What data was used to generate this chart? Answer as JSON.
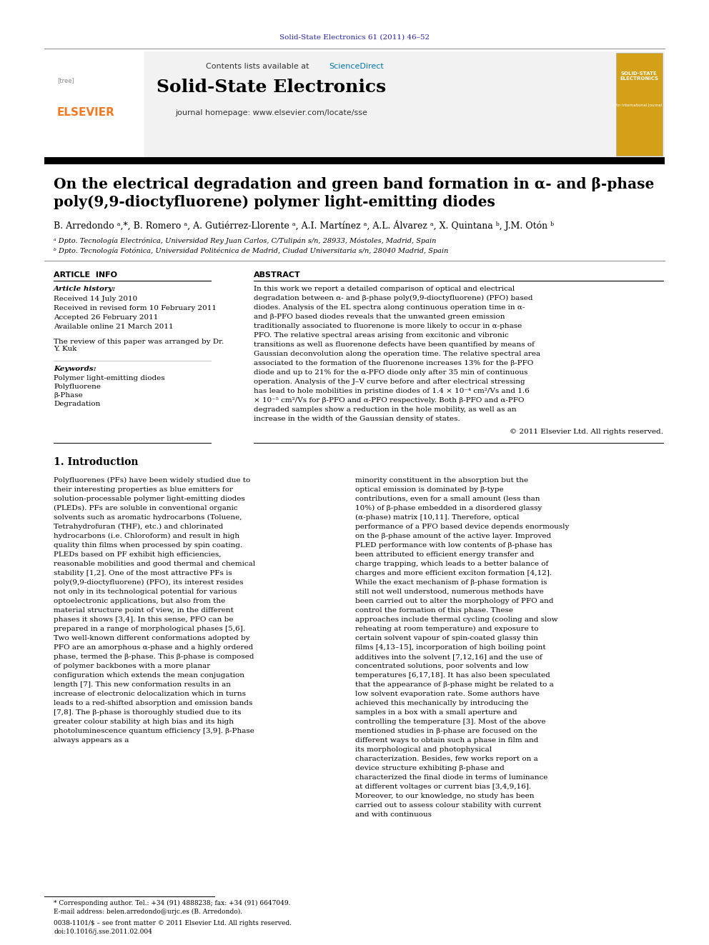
{
  "journal_ref": "Solid-State Electronics 61 (2011) 46–52",
  "contents_text": "Contents lists available at",
  "sciencedirect_text": "ScienceDirect",
  "journal_name": "Solid-State Electronics",
  "journal_homepage": "journal homepage: www.elsevier.com/locate/sse",
  "paper_title_line1": "On the electrical degradation and green band formation in α- and β-phase",
  "paper_title_line2": "poly(9,9-dioctyfluorene) polymer light-emitting diodes",
  "authors": "B. Arredondo ᵃ,*, B. Romero ᵃ, A. Gutiérrez-Llorente ᵃ, A.I. Martínez ᵃ, A.L. Álvarez ᵃ, X. Quintana ᵇ, J.M. Otón ᵇ",
  "affil_a": "ᵃ Dpto. Tecnología Electrónica, Universidad Rey Juan Carlos, C/Tulipán s/n, 28933, Móstoles, Madrid, Spain",
  "affil_b": "ᵇ Dpto. Tecnología Fotónica, Universidad Politécnica de Madrid, Ciudad Universitaria s/n, 28040 Madrid, Spain",
  "article_info_header": "ARTICLE  INFO",
  "abstract_header": "ABSTRACT",
  "article_history_label": "Article history:",
  "received_1": "Received 14 July 2010",
  "received_revised": "Received in revised form 10 February 2011",
  "accepted": "Accepted 26 February 2011",
  "available": "Available online 21 March 2011",
  "review_note": "The review of this paper was arranged by Dr.\nY. Kuk",
  "keywords_label": "Keywords:",
  "keyword1": "Polymer light-emitting diodes",
  "keyword2": "Polyfluorene",
  "keyword3": "β-Phase",
  "keyword4": "Degradation",
  "abstract_text": "In this work we report a detailed comparison of optical and electrical degradation between α- and β-phase poly(9,9-dioctyfluorene) (PFO) based diodes. Analysis of the EL spectra along continuous operation time in α- and β-PFO based diodes reveals that the unwanted green emission traditionally associated to fluorenone is more likely to occur in α-phase PFO. The relative spectral areas arising from excitonic and vibronic transitions as well as fluorenone defects have been quantified by means of Gaussian deconvolution along the operation time. The relative spectral area associated to the formation of the fluorenone increases 13% for the β-PFO diode and up to 21% for the α-PFO diode only after 35 min of continuous operation. Analysis of the J–V curve before and after electrical stressing has lead to hole mobilities in pristine diodes of 1.4 × 10⁻⁴ cm²/Vs and 1.6 × 10⁻⁵ cm²/Vs for β-PFO and α-PFO respectively. Both β-PFO and α-PFO degraded samples show a reduction in the hole mobility, as well as an increase in the width of the Gaussian density of states.",
  "copyright": "© 2011 Elsevier Ltd. All rights reserved.",
  "intro_header": "1. Introduction",
  "intro_col1": "Polyfluorenes (PFs) have been widely studied due to their interesting properties as blue emitters for solution-processable polymer light-emitting diodes (PLEDs). PFs are soluble in conventional organic solvents such as aromatic hydrocarbons (Toluene, Tetrahydrofuran (THF), etc.) and chlorinated hydrocarbons (i.e. Chloroform) and result in high quality thin films when processed by spin coating. PLEDs based on PF exhibit high efficiencies, reasonable mobilities and good thermal and chemical stability [1,2]. One of the most attractive PFs is poly(9,9-dioctyfluorene) (PFO), its interest resides not only in its technological potential for various optoelectronic applications, but also from the material structure point of view, in the different phases it shows [3,4]. In this sense, PFO can be prepared in a range of morphological phases [5,6]. Two well-known different conformations adopted by PFO are an amorphous α-phase and a highly ordered phase, termed the β-phase. This β-phase is composed of polymer backbones with a more planar configuration which extends the mean conjugation length [7]. This new conformation results in an increase of electronic delocalization which in turns leads to a red-shifted absorption and emission bands [7,8]. The β-phase is thoroughly studied due to its greater colour stability at high bias and its high photoluminescence quantum efficiency [3,9]. β-Phase always appears as a",
  "intro_col2": "minority constituent in the absorption but the optical emission is dominated by β-type contributions, even for a small amount (less than 10%) of β-phase embedded in a disordered glassy (α-phase) matrix [10,11]. Therefore, optical performance of a PFO based device depends enormously on the β-phase amount of the active layer. Improved PLED performance with low contents of β-phase has been attributed to efficient energy transfer and charge trapping, which leads to a better balance of charges and more efficient exciton formation [4,12]. While the exact mechanism of β-phase formation is still not well understood, numerous methods have been carried out to alter the morphology of PFO and control the formation of this phase. These approaches include thermal cycling (cooling and slow reheating at room temperature) and exposure to certain solvent vapour of spin-coated glassy thin films [4,13–15], incorporation of high boiling point additives into the solvent [7,12,16] and the use of concentrated solutions, poor solvents and low temperatures [6,17,18]. It has also been speculated that the appearance of β-phase might be related to a low solvent evaporation rate. Some authors have achieved this mechanically by introducing the samples in a box with a small aperture and controlling the temperature [3]. Most of the above mentioned studies in β-phase are focused on the different ways to obtain such a phase in film and its morphological and photophysical characterization. Besides, few works report on a device structure exhibiting β-phase and characterized the final diode in terms of luminance at different voltages or current bias [3,4,9,16]. Moreover, to our knowledge, no study has been carried out to assess colour stability with current and with continuous",
  "footnote1": "* Corresponding author. Tel.: +34 (91) 4888238; fax: +34 (91) 6647049.",
  "footnote2": "E-mail address: belen.arredondo@urjc.es (B. Arredondo).",
  "footnote3": "0038-1101/$ – see front matter © 2011 Elsevier Ltd. All rights reserved.",
  "footnote4": "doi:10.1016/j.sse.2011.02.004",
  "bg_header": "#f0f0f0",
  "color_journal_ref": "#2222aa",
  "color_black": "#000000",
  "color_elsevier_orange": "#f47920",
  "color_dark_blue": "#003087",
  "color_science_direct": "#0077b6",
  "color_separator": "#000000"
}
